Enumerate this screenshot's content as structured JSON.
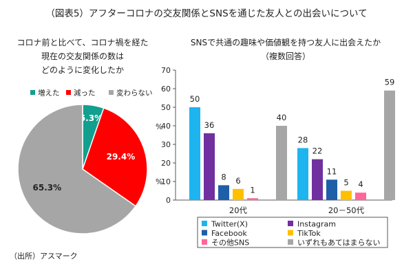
{
  "title": "（図表5）アフターコロナの交友関係とSNSを通じた友人との出会いについて",
  "source": "（出所）アスマーク",
  "chart_data": [
    {
      "type": "pie",
      "title_lines": [
        "コロナ前と比べて、コロナ禍を経た",
        "現在の交友関係の数は",
        "どのように変化したか"
      ],
      "slices": [
        {
          "label": "増えた",
          "value": 5.3,
          "display": "5.3%",
          "color": "#129f8e",
          "text_color": "#ffffff"
        },
        {
          "label": "減った",
          "value": 29.4,
          "display": "29.4%",
          "color": "#ff0000",
          "text_color": "#ffffff"
        },
        {
          "label": "変わらない",
          "value": 65.3,
          "display": "65.3%",
          "color": "#a6a6a6",
          "text_color": "#222222"
        }
      ],
      "legend_position": "top"
    },
    {
      "type": "bar",
      "title_lines": [
        "SNSで共通の趣味や価値観を持つ友人に出会えたか",
        "（複数回答）"
      ],
      "categories": [
        "20代",
        "20－50代"
      ],
      "series": [
        {
          "name": "Twitter(X)",
          "values": [
            50,
            28
          ],
          "color": "#1eb4f0"
        },
        {
          "name": "Instagram",
          "values": [
            36,
            22
          ],
          "color": "#7030a0"
        },
        {
          "name": "Facebook",
          "values": [
            8,
            11
          ],
          "color": "#1f5fa8"
        },
        {
          "name": "TikTok",
          "values": [
            6,
            5
          ],
          "color": "#ffc000"
        },
        {
          "name": "その他SNS",
          "values": [
            1,
            4
          ],
          "color": "#ff6699"
        },
        {
          "name": "いずれもあてはまらない",
          "values": [
            40,
            59
          ],
          "color": "#a6a6a6"
        }
      ],
      "ylim": [
        0,
        70
      ],
      "yticks": [
        0,
        10,
        20,
        30,
        40,
        50,
        60,
        70
      ],
      "ylabel": "%",
      "legend_position": "bottom"
    }
  ]
}
